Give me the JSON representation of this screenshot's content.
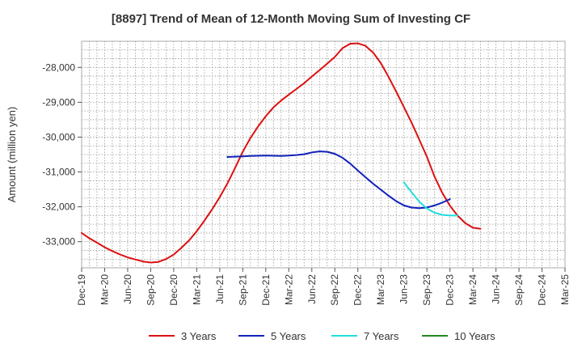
{
  "chart_data": {
    "type": "line",
    "title": "[8897]  Trend of Mean of 12-Month Moving Sum of Investing CF",
    "xlabel": "",
    "ylabel": "Amount (million yen)",
    "ylim": [
      -33750,
      -27250
    ],
    "yticks": [
      -28000,
      -29000,
      -30000,
      -31000,
      -32000,
      -33000
    ],
    "ytick_labels": [
      "-28,000",
      "-29,000",
      "-30,000",
      "-31,000",
      "-32,000",
      "-33,000"
    ],
    "x_categories": [
      "Dec-19",
      "Mar-20",
      "Jun-20",
      "Sep-20",
      "Dec-20",
      "Mar-21",
      "Jun-21",
      "Sep-21",
      "Dec-21",
      "Mar-22",
      "Jun-22",
      "Sep-22",
      "Dec-22",
      "Mar-23",
      "Jun-23",
      "Sep-23",
      "Dec-23",
      "Mar-24",
      "Jun-24",
      "Sep-24",
      "Dec-24",
      "Mar-25"
    ],
    "grid": true,
    "legend_position": "bottom",
    "series": [
      {
        "name": "3 Years",
        "color": "#dd1111",
        "points": [
          [
            0,
            -32750
          ],
          [
            0.33,
            -32900
          ],
          [
            0.67,
            -33030
          ],
          [
            1,
            -33160
          ],
          [
            1.33,
            -33270
          ],
          [
            1.67,
            -33370
          ],
          [
            2,
            -33450
          ],
          [
            2.33,
            -33510
          ],
          [
            2.67,
            -33570
          ],
          [
            3,
            -33600
          ],
          [
            3.33,
            -33580
          ],
          [
            3.67,
            -33500
          ],
          [
            4,
            -33370
          ],
          [
            4.33,
            -33180
          ],
          [
            4.67,
            -32960
          ],
          [
            5,
            -32700
          ],
          [
            5.33,
            -32400
          ],
          [
            5.67,
            -32070
          ],
          [
            6,
            -31720
          ],
          [
            6.33,
            -31330
          ],
          [
            6.67,
            -30880
          ],
          [
            7,
            -30420
          ],
          [
            7.33,
            -30030
          ],
          [
            7.67,
            -29690
          ],
          [
            8,
            -29400
          ],
          [
            8.33,
            -29150
          ],
          [
            8.67,
            -28950
          ],
          [
            9,
            -28780
          ],
          [
            9.33,
            -28620
          ],
          [
            9.67,
            -28450
          ],
          [
            10,
            -28260
          ],
          [
            10.33,
            -28080
          ],
          [
            10.67,
            -27890
          ],
          [
            11,
            -27700
          ],
          [
            11.33,
            -27450
          ],
          [
            11.67,
            -27320
          ],
          [
            12,
            -27310
          ],
          [
            12.33,
            -27380
          ],
          [
            12.67,
            -27580
          ],
          [
            13,
            -27880
          ],
          [
            13.33,
            -28270
          ],
          [
            13.67,
            -28700
          ],
          [
            14,
            -29140
          ],
          [
            14.33,
            -29580
          ],
          [
            14.67,
            -30070
          ],
          [
            15,
            -30560
          ],
          [
            15.33,
            -31130
          ],
          [
            15.67,
            -31600
          ],
          [
            16,
            -31970
          ],
          [
            16.33,
            -32250
          ],
          [
            16.67,
            -32470
          ],
          [
            17,
            -32600
          ],
          [
            17.33,
            -32630
          ]
        ]
      },
      {
        "name": "5 Years",
        "color": "#1122bb",
        "points": [
          [
            6.33,
            -30570
          ],
          [
            6.67,
            -30560
          ],
          [
            7,
            -30550
          ],
          [
            7.33,
            -30540
          ],
          [
            7.67,
            -30535
          ],
          [
            8,
            -30530
          ],
          [
            8.33,
            -30535
          ],
          [
            8.67,
            -30540
          ],
          [
            9,
            -30530
          ],
          [
            9.33,
            -30515
          ],
          [
            9.67,
            -30490
          ],
          [
            10,
            -30440
          ],
          [
            10.33,
            -30410
          ],
          [
            10.67,
            -30420
          ],
          [
            11,
            -30480
          ],
          [
            11.33,
            -30590
          ],
          [
            11.67,
            -30760
          ],
          [
            12,
            -30960
          ],
          [
            12.33,
            -31150
          ],
          [
            12.67,
            -31340
          ],
          [
            13,
            -31510
          ],
          [
            13.33,
            -31680
          ],
          [
            13.67,
            -31840
          ],
          [
            14,
            -31960
          ],
          [
            14.33,
            -32020
          ],
          [
            14.67,
            -32040
          ],
          [
            15,
            -32020
          ],
          [
            15.33,
            -31960
          ],
          [
            15.67,
            -31880
          ],
          [
            16,
            -31780
          ]
        ]
      },
      {
        "name": "7 Years",
        "color": "#22dddd",
        "points": [
          [
            14,
            -31300
          ],
          [
            14.33,
            -31580
          ],
          [
            14.67,
            -31850
          ],
          [
            15,
            -32050
          ],
          [
            15.33,
            -32170
          ],
          [
            15.67,
            -32230
          ],
          [
            16,
            -32250
          ],
          [
            16.33,
            -32250
          ]
        ]
      },
      {
        "name": "10 Years",
        "color": "#228822",
        "points": []
      }
    ]
  }
}
